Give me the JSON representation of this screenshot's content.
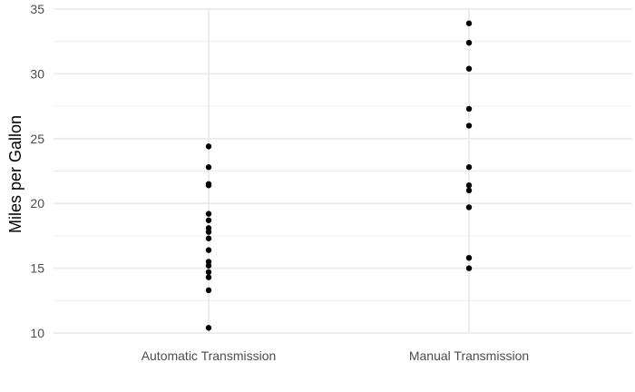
{
  "chart_data": {
    "type": "scatter",
    "title": "",
    "xlabel": "",
    "ylabel": "Miles per Gallon",
    "categories": [
      "Automatic Transmission",
      "Manual Transmission"
    ],
    "ylim": [
      10,
      35
    ],
    "yticks": [
      10,
      15,
      20,
      25,
      30,
      35
    ],
    "grid": true,
    "point_color": "#000000",
    "grid_color": "#ebebeb",
    "series": [
      {
        "category": "Automatic Transmission",
        "values": [
          24.4,
          22.8,
          21.5,
          21.4,
          19.2,
          18.7,
          18.1,
          17.8,
          17.3,
          16.4,
          15.5,
          15.2,
          14.7,
          14.3,
          13.3,
          10.4
        ]
      },
      {
        "category": "Manual Transmission",
        "values": [
          33.9,
          32.4,
          30.4,
          27.3,
          26.0,
          22.8,
          21.4,
          21.0,
          19.7,
          15.8,
          15.0
        ]
      }
    ]
  }
}
